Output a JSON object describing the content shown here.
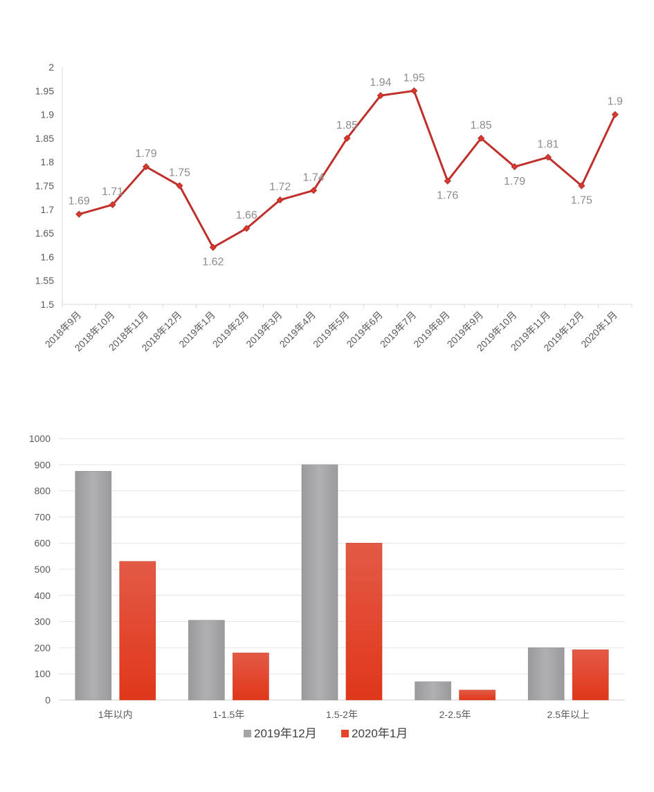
{
  "chart_data": [
    {
      "type": "line",
      "title": "",
      "xlabel": "",
      "ylabel": "",
      "categories": [
        "2018年9月",
        "2018年10月",
        "2018年11月",
        "2018年12月",
        "2019年1月",
        "2019年2月",
        "2019年3月",
        "2019年4月",
        "2019年5月",
        "2019年6月",
        "2019年7月",
        "2019年8月",
        "2019年9月",
        "2019年10月",
        "2019年11月",
        "2019年12月",
        "2020年1月"
      ],
      "values": [
        1.69,
        1.71,
        1.79,
        1.75,
        1.62,
        1.66,
        1.72,
        1.74,
        1.85,
        1.94,
        1.95,
        1.76,
        1.85,
        1.79,
        1.81,
        1.75,
        1.9
      ],
      "data_labels": [
        "1.69",
        "1.71",
        "1.79",
        "1.75",
        "1.62",
        "1.66",
        "1.72",
        "1.74",
        "1.85",
        "1.94",
        "1.95",
        "1.76",
        "1.85",
        "1.79",
        "1.81",
        "1.75",
        "1.9"
      ],
      "ylim": [
        1.5,
        2
      ],
      "yticks": [
        "1.5",
        "1.55",
        "1.6",
        "1.65",
        "1.7",
        "1.75",
        "1.8",
        "1.85",
        "1.9",
        "1.95",
        "2"
      ],
      "line_color": "#c0302a",
      "grid": false
    },
    {
      "type": "bar",
      "title": "",
      "xlabel": "",
      "ylabel": "",
      "categories": [
        "1年以内",
        "1-1.5年",
        "1.5-2年",
        "2-2.5年",
        "2.5年以上"
      ],
      "series": [
        {
          "name": "2019年12月",
          "values": [
            875,
            305,
            900,
            70,
            200
          ],
          "color": "#a5a5a7"
        },
        {
          "name": "2020年1月",
          "values": [
            530,
            180,
            600,
            38,
            192
          ],
          "color": "#e2452a"
        }
      ],
      "ylim": [
        0,
        1000
      ],
      "yticks": [
        "0",
        "100",
        "200",
        "300",
        "400",
        "500",
        "600",
        "700",
        "800",
        "900",
        "1000"
      ],
      "grid": true,
      "legend_position": "bottom"
    }
  ]
}
